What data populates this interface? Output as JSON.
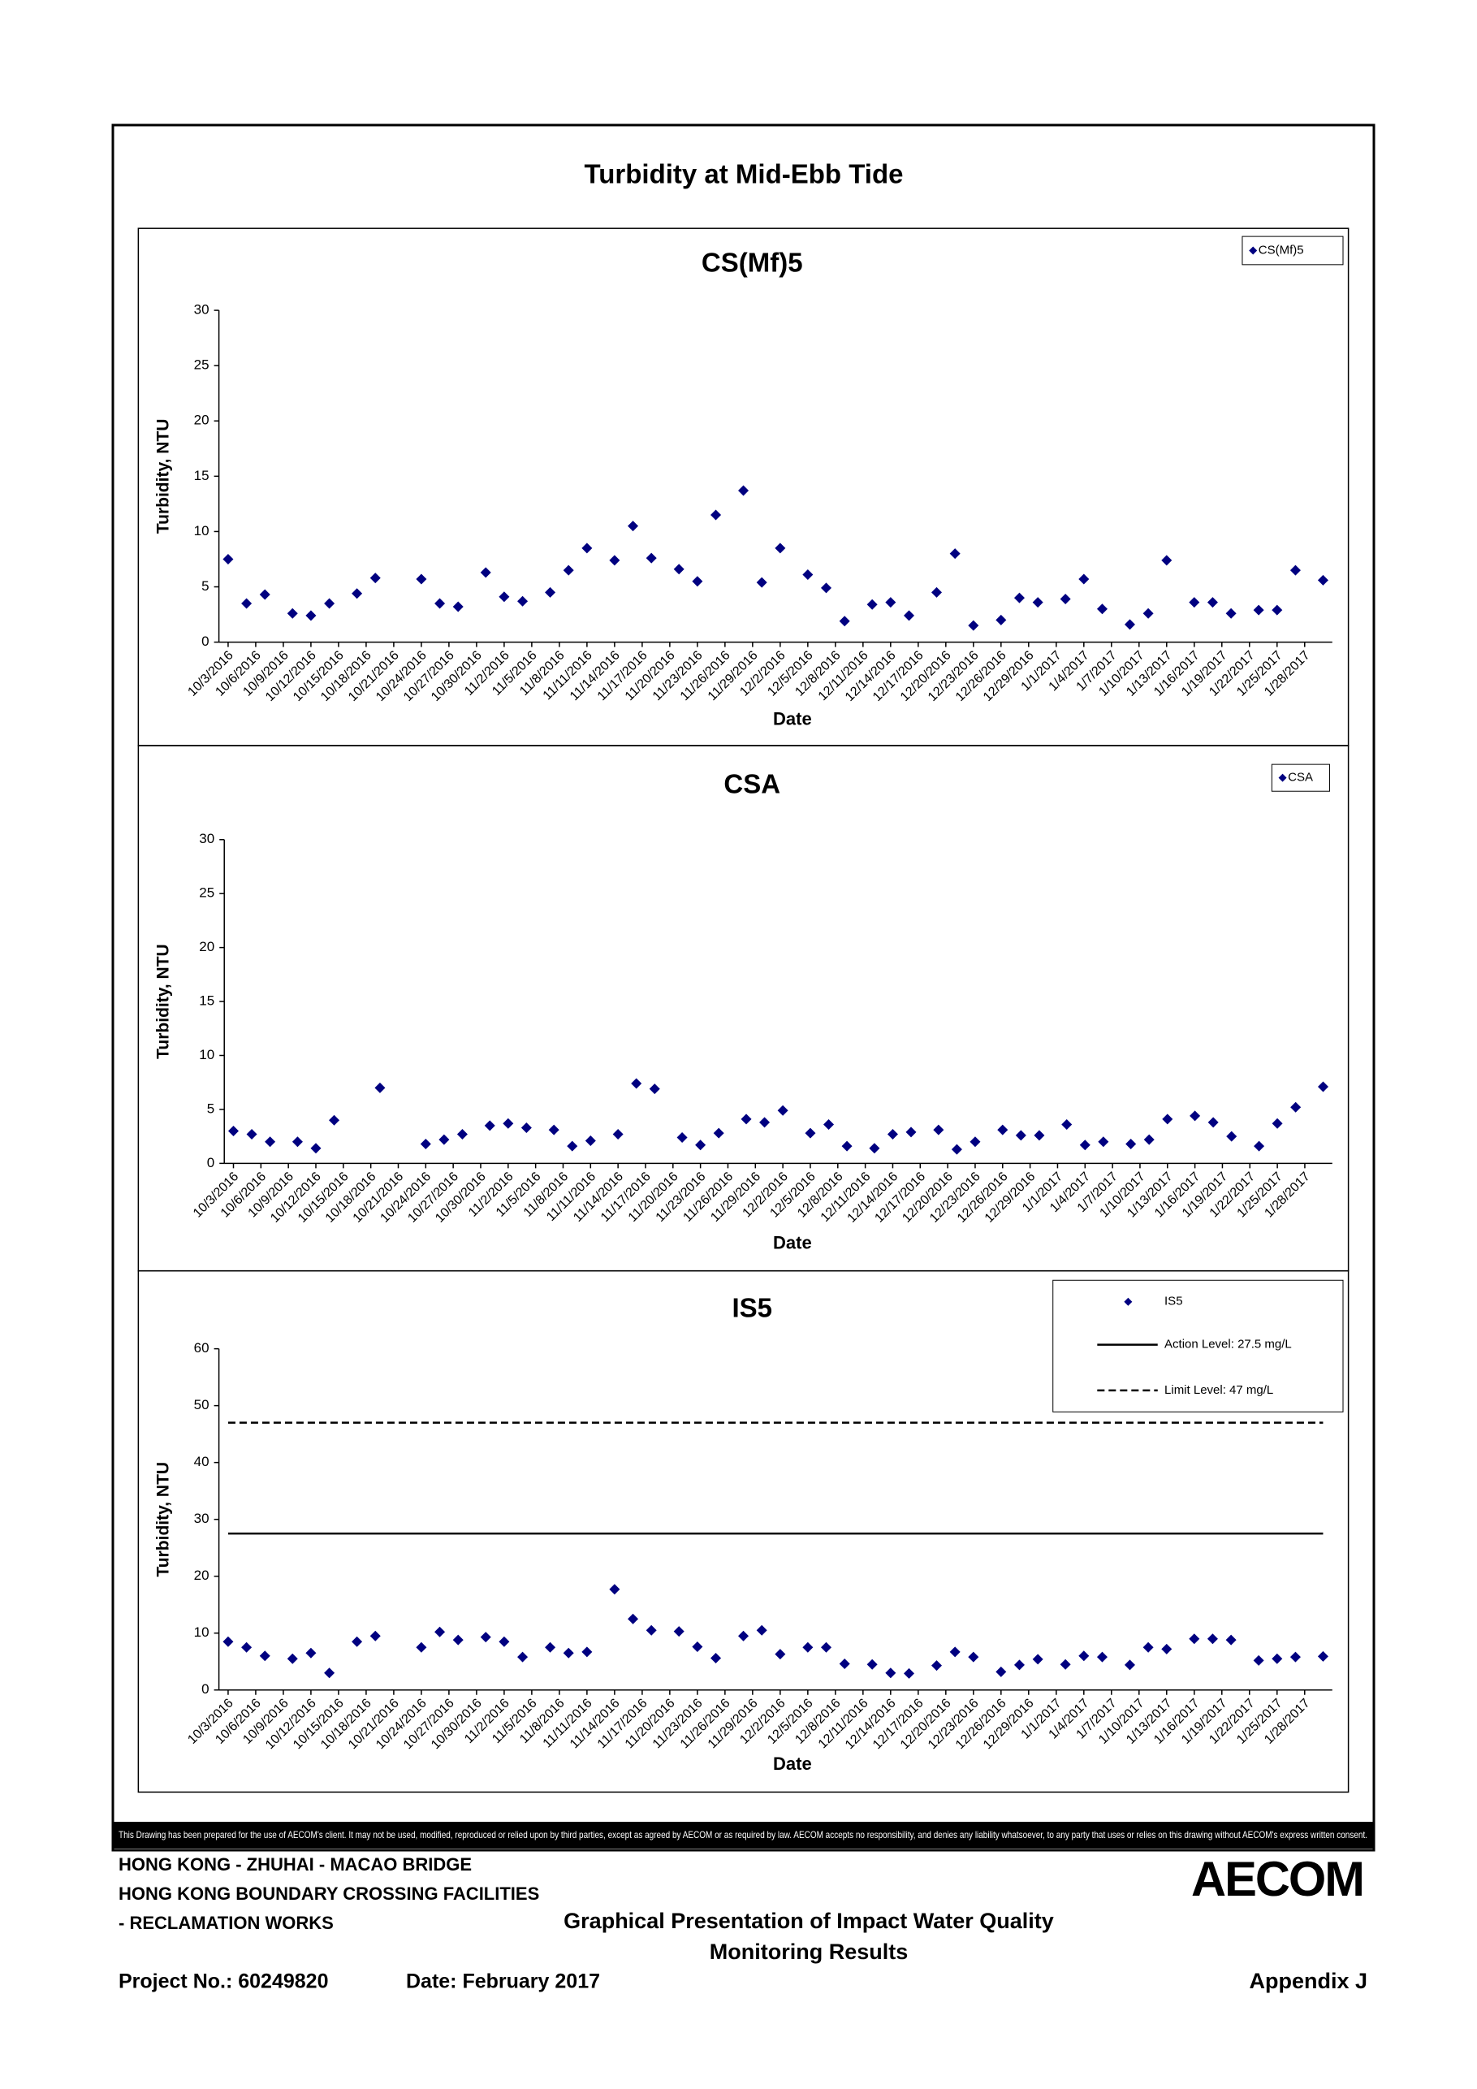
{
  "title": "Turbidity at Mid-Ebb Tide",
  "chart_data": [
    {
      "type": "scatter",
      "title": "CS(Mf)5",
      "x_label": "Date",
      "y_label": "Turbidity, NTU",
      "x": [
        "10/3/2016",
        "10/5/2016",
        "10/7/2016",
        "10/10/2016",
        "10/12/2016",
        "10/14/2016",
        "10/17/2016",
        "10/19/2016",
        "10/24/2016",
        "10/26/2016",
        "10/28/2016",
        "10/31/2016",
        "11/2/2016",
        "11/4/2016",
        "11/7/2016",
        "11/9/2016",
        "11/11/2016",
        "11/14/2016",
        "11/16/2016",
        "11/18/2016",
        "11/21/2016",
        "11/23/2016",
        "11/25/2016",
        "11/28/2016",
        "11/30/2016",
        "12/2/2016",
        "12/5/2016",
        "12/7/2016",
        "12/9/2016",
        "12/12/2016",
        "12/14/2016",
        "12/16/2016",
        "12/19/2016",
        "12/21/2016",
        "12/23/2016",
        "12/26/2016",
        "12/28/2016",
        "12/30/2016",
        "1/2/2017",
        "1/4/2017",
        "1/6/2017",
        "1/9/2017",
        "1/11/2017",
        "1/13/2017",
        "1/16/2017",
        "1/18/2017",
        "1/20/2017",
        "1/23/2017",
        "1/25/2017",
        "1/27/2017",
        "1/30/2017"
      ],
      "series": [
        {
          "name": "CS(Mf)5",
          "color": "#000080",
          "values": [
            7.5,
            3.5,
            4.3,
            2.6,
            2.4,
            3.5,
            4.4,
            5.8,
            5.7,
            3.5,
            3.2,
            6.3,
            4.1,
            3.7,
            4.5,
            6.5,
            8.5,
            7.4,
            10.5,
            7.6,
            6.6,
            5.5,
            11.5,
            13.7,
            5.4,
            8.5,
            6.1,
            4.9,
            1.9,
            3.4,
            3.6,
            2.4,
            4.5,
            8.0,
            1.5,
            2.0,
            4.0,
            3.6,
            3.9,
            5.7,
            3.0,
            1.6,
            2.6,
            7.4,
            3.6,
            3.6,
            2.6,
            2.9,
            2.9,
            6.5,
            5.6
          ]
        }
      ],
      "xlim": [
        "10/2/2016",
        "1/31/2017"
      ],
      "xticks": [
        "10/3/2016",
        "10/6/2016",
        "10/9/2016",
        "10/12/2016",
        "10/15/2016",
        "10/18/2016",
        "10/21/2016",
        "10/24/2016",
        "10/27/2016",
        "10/30/2016",
        "11/2/2016",
        "11/5/2016",
        "11/8/2016",
        "11/11/2016",
        "11/14/2016",
        "11/17/2016",
        "11/20/2016",
        "11/23/2016",
        "11/26/2016",
        "11/29/2016",
        "12/2/2016",
        "12/5/2016",
        "12/8/2016",
        "12/11/2016",
        "12/14/2016",
        "12/17/2016",
        "12/20/2016",
        "12/23/2016",
        "12/26/2016",
        "12/29/2016",
        "1/1/2017",
        "1/4/2017",
        "1/7/2017",
        "1/10/2017",
        "1/13/2017",
        "1/16/2017",
        "1/19/2017",
        "1/22/2017",
        "1/25/2017",
        "1/28/2017"
      ],
      "ylim": [
        0,
        30
      ],
      "yticks": [
        0,
        5,
        10,
        15,
        20,
        25,
        30
      ],
      "grid": false,
      "legend": "upper right"
    },
    {
      "type": "scatter",
      "title": "CSA",
      "x_label": "Date",
      "y_label": "Turbidity, NTU",
      "x": [
        "10/3/2016",
        "10/5/2016",
        "10/7/2016",
        "10/10/2016",
        "10/12/2016",
        "10/14/2016",
        "10/19/2016",
        "10/24/2016",
        "10/26/2016",
        "10/28/2016",
        "10/31/2016",
        "11/2/2016",
        "11/4/2016",
        "11/7/2016",
        "11/9/2016",
        "11/11/2016",
        "11/14/2016",
        "11/16/2016",
        "11/18/2016",
        "11/21/2016",
        "11/23/2016",
        "11/25/2016",
        "11/28/2016",
        "11/30/2016",
        "12/2/2016",
        "12/5/2016",
        "12/7/2016",
        "12/9/2016",
        "12/12/2016",
        "12/14/2016",
        "12/16/2016",
        "12/19/2016",
        "12/21/2016",
        "12/23/2016",
        "12/26/2016",
        "12/28/2016",
        "12/30/2016",
        "1/2/2017",
        "1/4/2017",
        "1/6/2017",
        "1/9/2017",
        "1/11/2017",
        "1/13/2017",
        "1/16/2017",
        "1/18/2017",
        "1/20/2017",
        "1/23/2017",
        "1/25/2017",
        "1/27/2017",
        "1/30/2017"
      ],
      "series": [
        {
          "name": "CSA",
          "color": "#000080",
          "values": [
            3.0,
            2.7,
            2.0,
            2.0,
            1.4,
            4.0,
            7.0,
            1.8,
            2.2,
            2.7,
            3.5,
            3.7,
            3.3,
            3.1,
            1.6,
            2.1,
            2.7,
            7.4,
            6.9,
            2.4,
            1.7,
            2.8,
            4.1,
            3.8,
            4.9,
            2.8,
            3.6,
            1.6,
            1.4,
            2.7,
            2.9,
            3.1,
            1.3,
            2.0,
            3.1,
            2.6,
            2.6,
            3.6,
            1.7,
            2.0,
            1.8,
            2.2,
            4.1,
            4.4,
            3.8,
            2.5,
            1.6,
            3.7,
            5.2,
            7.1
          ]
        }
      ],
      "xlim": [
        "10/2/2016",
        "1/31/2017"
      ],
      "xticks": [
        "10/3/2016",
        "10/6/2016",
        "10/9/2016",
        "10/12/2016",
        "10/15/2016",
        "10/18/2016",
        "10/21/2016",
        "10/24/2016",
        "10/27/2016",
        "10/30/2016",
        "11/2/2016",
        "11/5/2016",
        "11/8/2016",
        "11/11/2016",
        "11/14/2016",
        "11/17/2016",
        "11/20/2016",
        "11/23/2016",
        "11/26/2016",
        "11/29/2016",
        "12/2/2016",
        "12/5/2016",
        "12/8/2016",
        "12/11/2016",
        "12/14/2016",
        "12/17/2016",
        "12/20/2016",
        "12/23/2016",
        "12/26/2016",
        "12/29/2016",
        "1/1/2017",
        "1/4/2017",
        "1/7/2017",
        "1/10/2017",
        "1/13/2017",
        "1/16/2017",
        "1/19/2017",
        "1/22/2017",
        "1/25/2017",
        "1/28/2017"
      ],
      "ylim": [
        0,
        30
      ],
      "yticks": [
        0,
        5,
        10,
        15,
        20,
        25,
        30
      ],
      "grid": false,
      "legend": "upper right"
    },
    {
      "type": "scatter",
      "title": "IS5",
      "x_label": "Date",
      "y_label": "Turbidity, NTU",
      "x": [
        "10/3/2016",
        "10/5/2016",
        "10/7/2016",
        "10/10/2016",
        "10/12/2016",
        "10/14/2016",
        "10/17/2016",
        "10/19/2016",
        "10/24/2016",
        "10/26/2016",
        "10/28/2016",
        "10/31/2016",
        "11/2/2016",
        "11/4/2016",
        "11/7/2016",
        "11/9/2016",
        "11/11/2016",
        "11/14/2016",
        "11/16/2016",
        "11/18/2016",
        "11/21/2016",
        "11/23/2016",
        "11/25/2016",
        "11/28/2016",
        "11/30/2016",
        "12/2/2016",
        "12/5/2016",
        "12/7/2016",
        "12/9/2016",
        "12/12/2016",
        "12/14/2016",
        "12/16/2016",
        "12/19/2016",
        "12/21/2016",
        "12/23/2016",
        "12/26/2016",
        "12/28/2016",
        "12/30/2016",
        "1/2/2017",
        "1/4/2017",
        "1/6/2017",
        "1/9/2017",
        "1/11/2017",
        "1/13/2017",
        "1/16/2017",
        "1/18/2017",
        "1/20/2017",
        "1/23/2017",
        "1/25/2017",
        "1/27/2017",
        "1/30/2017"
      ],
      "series": [
        {
          "name": "IS5",
          "color": "#000080",
          "values": [
            8.5,
            7.5,
            6.0,
            5.5,
            6.5,
            3.0,
            8.5,
            9.5,
            7.5,
            10.2,
            8.8,
            9.3,
            8.5,
            5.8,
            7.5,
            6.5,
            6.7,
            17.7,
            12.5,
            10.5,
            10.3,
            7.6,
            5.6,
            9.5,
            10.5,
            6.3,
            7.5,
            7.5,
            4.6,
            4.5,
            3.0,
            2.9,
            4.3,
            6.7,
            5.8,
            3.2,
            4.4,
            5.4,
            4.5,
            6.0,
            5.8,
            4.4,
            7.5,
            7.2,
            9.0,
            9.0,
            8.8,
            5.2,
            5.5,
            5.8,
            5.9
          ]
        }
      ],
      "reference_lines": [
        {
          "name": "Action Level: 27.5 mg/L",
          "value": 27.5,
          "color": "#000000",
          "dash": "solid"
        },
        {
          "name": "Limit Level: 47 mg/L",
          "value": 47,
          "color": "#000000",
          "dash": "dashed"
        }
      ],
      "xlim": [
        "10/2/2016",
        "1/31/2017"
      ],
      "xticks": [
        "10/3/2016",
        "10/6/2016",
        "10/9/2016",
        "10/12/2016",
        "10/15/2016",
        "10/18/2016",
        "10/21/2016",
        "10/24/2016",
        "10/27/2016",
        "10/30/2016",
        "11/2/2016",
        "11/5/2016",
        "11/8/2016",
        "11/11/2016",
        "11/14/2016",
        "11/17/2016",
        "11/20/2016",
        "11/23/2016",
        "11/26/2016",
        "11/29/2016",
        "12/2/2016",
        "12/5/2016",
        "12/8/2016",
        "12/11/2016",
        "12/14/2016",
        "12/17/2016",
        "12/20/2016",
        "12/23/2016",
        "12/26/2016",
        "12/29/2016",
        "1/1/2017",
        "1/4/2017",
        "1/7/2017",
        "1/10/2017",
        "1/13/2017",
        "1/16/2017",
        "1/19/2017",
        "1/22/2017",
        "1/25/2017",
        "1/28/2017"
      ],
      "ylim": [
        0,
        60
      ],
      "yticks": [
        0,
        10,
        20,
        30,
        40,
        50,
        60
      ],
      "grid": false,
      "legend": "upper right"
    }
  ],
  "disclaimer": "This Drawing has been prepared for the use of AECOM's client. It may not be used, modified, reproduced or relied upon by third parties, except as agreed by AECOM or as required by law. AECOM accepts no responsibility, and denies any liability whatsoever, to any party that uses or relies on this drawing without AECOM's express written consent.",
  "footer": {
    "project_lines": [
      "HONG KONG - ZHUHAI - MACAO BRIDGE",
      "HONG KONG BOUNDARY CROSSING FACILITIES",
      "- RECLAMATION WORKS"
    ],
    "caption": [
      "Graphical Presentation of Impact Water Quality",
      "Monitoring Results"
    ],
    "project_no": "Project No.: 60249820",
    "date": "Date: February 2017",
    "appendix": "Appendix J",
    "logo": "AECOM"
  }
}
